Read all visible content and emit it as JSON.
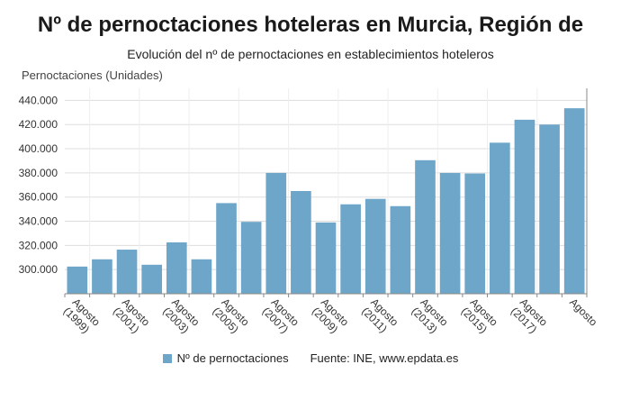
{
  "title": "Nº de pernoctaciones hoteleras en Murcia, Región de",
  "subtitle": "Evolución del nº de pernoctaciones en establecimientos hoteleros",
  "legend": {
    "series_label": "Nº de pernoctaciones",
    "source": "Fuente: INE, www.epdata.es"
  },
  "chart_data": {
    "type": "bar",
    "ylabel": "Pernoctaciones (Unidades)",
    "ylim": [
      280000,
      450000
    ],
    "yticks": [
      300000,
      320000,
      340000,
      360000,
      380000,
      400000,
      420000,
      440000
    ],
    "ytick_labels": [
      "300.000",
      "320.000",
      "340.000",
      "360.000",
      "380.000",
      "400.000",
      "420.000",
      "440.000"
    ],
    "categories": [
      "Agosto 1999",
      "Agosto 2000",
      "Agosto 2001",
      "Agosto 2002",
      "Agosto 2003",
      "Agosto 2004",
      "Agosto 2005",
      "Agosto 2006",
      "Agosto 2007",
      "Agosto 2008",
      "Agosto 2009",
      "Agosto 2010",
      "Agosto 2011",
      "Agosto 2012",
      "Agosto 2013",
      "Agosto 2014",
      "Agosto 2015",
      "Agosto 2016",
      "Agosto 2017",
      "Agosto 2018",
      "Agosto 2019"
    ],
    "xtick_labels": [
      {
        "index": 0,
        "lines": [
          "Agosto",
          "(1999)"
        ]
      },
      {
        "index": 2,
        "lines": [
          "Agosto",
          "(2001)"
        ]
      },
      {
        "index": 4,
        "lines": [
          "Agosto",
          "(2003)"
        ]
      },
      {
        "index": 6,
        "lines": [
          "Agosto",
          "(2005)"
        ]
      },
      {
        "index": 8,
        "lines": [
          "Agosto",
          "(2007)"
        ]
      },
      {
        "index": 10,
        "lines": [
          "Agosto",
          "(2009)"
        ]
      },
      {
        "index": 12,
        "lines": [
          "Agosto",
          "(2011)"
        ]
      },
      {
        "index": 14,
        "lines": [
          "Agosto",
          "(2013)"
        ]
      },
      {
        "index": 16,
        "lines": [
          "Agosto",
          "(2015)"
        ]
      },
      {
        "index": 18,
        "lines": [
          "Agosto",
          "(2017)"
        ]
      },
      {
        "index": 20,
        "lines": [
          "Agosto"
        ]
      }
    ],
    "series": [
      {
        "name": "Nº de pernoctaciones",
        "color": "#6ea6c9",
        "values": [
          302500,
          308500,
          316500,
          304000,
          322500,
          308500,
          355000,
          339500,
          380000,
          365000,
          339000,
          354000,
          358500,
          352500,
          390500,
          380000,
          379500,
          405000,
          424000,
          420000,
          433500
        ]
      }
    ],
    "grid": true,
    "legend_position": "bottom"
  }
}
